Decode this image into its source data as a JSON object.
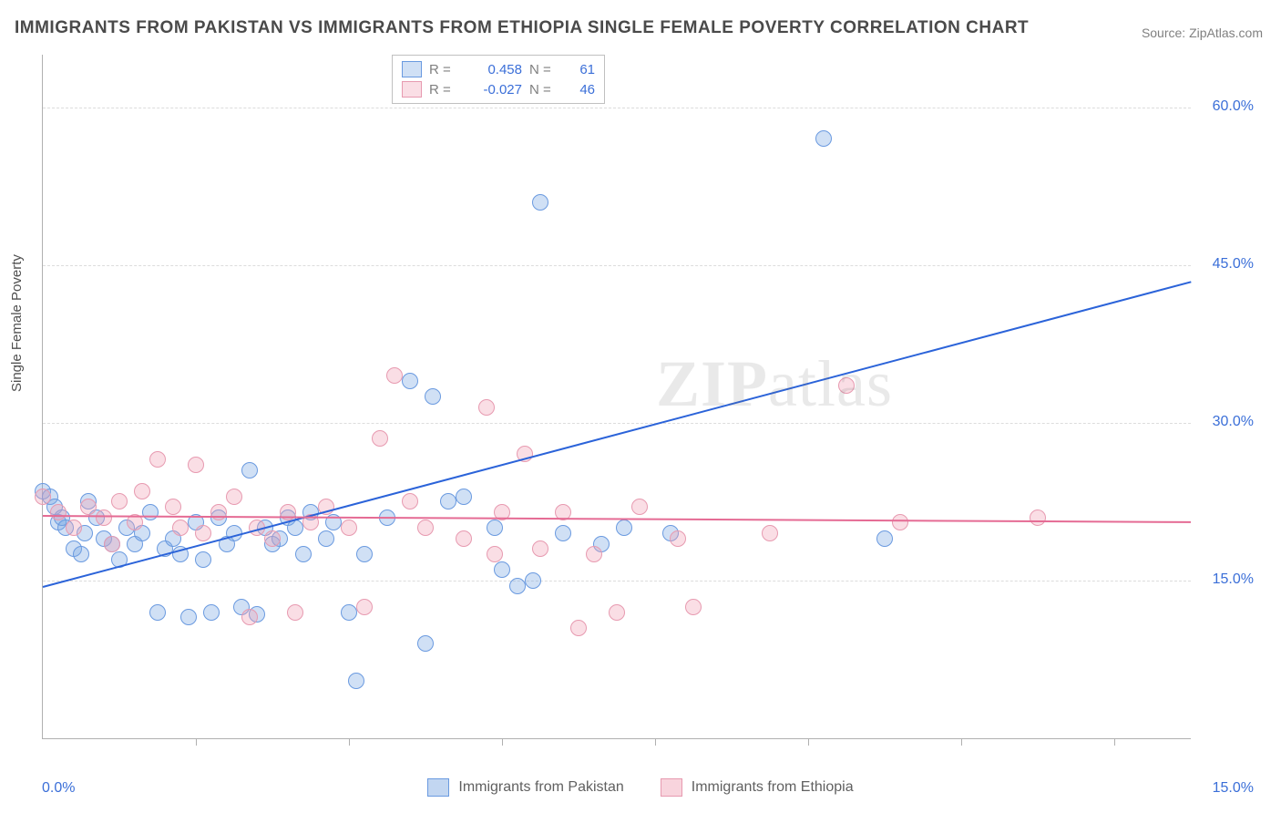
{
  "title": "IMMIGRANTS FROM PAKISTAN VS IMMIGRANTS FROM ETHIOPIA SINGLE FEMALE POVERTY CORRELATION CHART",
  "source": "Source: ZipAtlas.com",
  "y_axis_label": "Single Female Poverty",
  "watermark": "ZIPatlas",
  "chart": {
    "type": "scatter",
    "background_color": "#ffffff",
    "grid_color": "#dcdcdc",
    "border_color": "#b0b0b0",
    "x_range": [
      0,
      15
    ],
    "y_range": [
      0,
      65
    ],
    "y_ticks": [
      15,
      30,
      45,
      60
    ],
    "y_tick_labels": [
      "15.0%",
      "30.0%",
      "45.0%",
      "60.0%"
    ],
    "x_ticks": [
      2,
      4,
      6,
      8,
      10,
      12,
      14
    ],
    "x_corner_left": "0.0%",
    "x_corner_right": "15.0%",
    "marker_radius": 9,
    "marker_border_width": 1.2,
    "series": [
      {
        "name": "Immigrants from Pakistan",
        "fill": "rgba(120,165,225,0.35)",
        "stroke": "#6a9ae0",
        "trend_color": "#2b63d9",
        "R": "0.458",
        "N": "61",
        "trend": {
          "x1": 0,
          "y1": 14.5,
          "x2": 15,
          "y2": 43.5
        },
        "points": [
          [
            0.0,
            23.5
          ],
          [
            0.1,
            23.0
          ],
          [
            0.15,
            22.0
          ],
          [
            0.2,
            20.5
          ],
          [
            0.25,
            21.0
          ],
          [
            0.3,
            20.0
          ],
          [
            0.4,
            18.0
          ],
          [
            0.5,
            17.5
          ],
          [
            0.55,
            19.5
          ],
          [
            0.6,
            22.5
          ],
          [
            0.7,
            21.0
          ],
          [
            0.8,
            19.0
          ],
          [
            0.9,
            18.5
          ],
          [
            1.0,
            17.0
          ],
          [
            1.1,
            20.0
          ],
          [
            1.2,
            18.5
          ],
          [
            1.3,
            19.5
          ],
          [
            1.4,
            21.5
          ],
          [
            1.5,
            12.0
          ],
          [
            1.6,
            18.0
          ],
          [
            1.7,
            19.0
          ],
          [
            1.8,
            17.5
          ],
          [
            1.9,
            11.5
          ],
          [
            2.0,
            20.5
          ],
          [
            2.1,
            17.0
          ],
          [
            2.2,
            12.0
          ],
          [
            2.3,
            21.0
          ],
          [
            2.4,
            18.5
          ],
          [
            2.5,
            19.5
          ],
          [
            2.6,
            12.5
          ],
          [
            2.7,
            25.5
          ],
          [
            2.8,
            11.8
          ],
          [
            2.9,
            20.0
          ],
          [
            3.0,
            18.5
          ],
          [
            3.1,
            19.0
          ],
          [
            3.2,
            21.0
          ],
          [
            3.3,
            20.0
          ],
          [
            3.4,
            17.5
          ],
          [
            3.5,
            21.5
          ],
          [
            3.7,
            19.0
          ],
          [
            3.8,
            20.5
          ],
          [
            4.0,
            12.0
          ],
          [
            4.1,
            5.5
          ],
          [
            4.2,
            17.5
          ],
          [
            4.5,
            21.0
          ],
          [
            4.8,
            34.0
          ],
          [
            5.0,
            9.0
          ],
          [
            5.1,
            32.5
          ],
          [
            5.3,
            22.5
          ],
          [
            5.5,
            23.0
          ],
          [
            5.9,
            20.0
          ],
          [
            6.0,
            16.0
          ],
          [
            6.2,
            14.5
          ],
          [
            6.4,
            15.0
          ],
          [
            6.5,
            51.0
          ],
          [
            6.8,
            19.5
          ],
          [
            7.3,
            18.5
          ],
          [
            7.6,
            20.0
          ],
          [
            8.2,
            19.5
          ],
          [
            10.2,
            57.0
          ],
          [
            11.0,
            19.0
          ]
        ]
      },
      {
        "name": "Immigrants from Ethiopia",
        "fill": "rgba(240,160,180,0.35)",
        "stroke": "#e79ab0",
        "trend_color": "#e56b94",
        "R": "-0.027",
        "N": "46",
        "trend": {
          "x1": 0,
          "y1": 21.2,
          "x2": 15,
          "y2": 20.6
        },
        "points": [
          [
            0.0,
            23.0
          ],
          [
            0.2,
            21.5
          ],
          [
            0.4,
            20.0
          ],
          [
            0.6,
            22.0
          ],
          [
            0.8,
            21.0
          ],
          [
            0.9,
            18.5
          ],
          [
            1.0,
            22.5
          ],
          [
            1.2,
            20.5
          ],
          [
            1.3,
            23.5
          ],
          [
            1.5,
            26.5
          ],
          [
            1.7,
            22.0
          ],
          [
            1.8,
            20.0
          ],
          [
            2.0,
            26.0
          ],
          [
            2.1,
            19.5
          ],
          [
            2.3,
            21.5
          ],
          [
            2.5,
            23.0
          ],
          [
            2.7,
            11.5
          ],
          [
            2.8,
            20.0
          ],
          [
            3.0,
            19.0
          ],
          [
            3.2,
            21.5
          ],
          [
            3.3,
            12.0
          ],
          [
            3.5,
            20.5
          ],
          [
            3.7,
            22.0
          ],
          [
            4.0,
            20.0
          ],
          [
            4.2,
            12.5
          ],
          [
            4.4,
            28.5
          ],
          [
            4.6,
            34.5
          ],
          [
            4.8,
            22.5
          ],
          [
            5.0,
            20.0
          ],
          [
            5.5,
            19.0
          ],
          [
            5.8,
            31.5
          ],
          [
            5.9,
            17.5
          ],
          [
            6.0,
            21.5
          ],
          [
            6.3,
            27.0
          ],
          [
            6.5,
            18.0
          ],
          [
            6.8,
            21.5
          ],
          [
            7.0,
            10.5
          ],
          [
            7.2,
            17.5
          ],
          [
            7.5,
            12.0
          ],
          [
            7.8,
            22.0
          ],
          [
            8.3,
            19.0
          ],
          [
            8.5,
            12.5
          ],
          [
            9.5,
            19.5
          ],
          [
            10.5,
            33.5
          ],
          [
            11.2,
            20.5
          ],
          [
            13.0,
            21.0
          ]
        ]
      }
    ]
  },
  "legend_bottom": [
    {
      "label": "Immigrants from Pakistan",
      "fill": "rgba(120,165,225,0.45)",
      "stroke": "#6a9ae0"
    },
    {
      "label": "Immigrants from Ethiopia",
      "fill": "rgba(240,160,180,0.45)",
      "stroke": "#e79ab0"
    }
  ],
  "axis_label_color": "#3b6fd8",
  "title_color": "#4a4a4a"
}
